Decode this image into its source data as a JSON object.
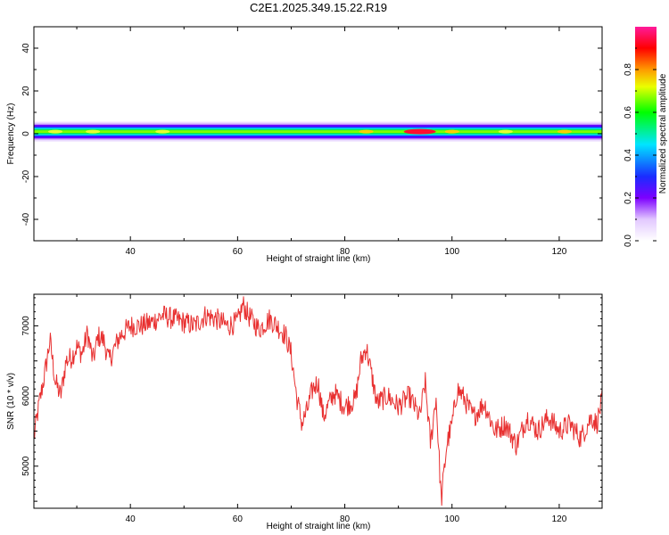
{
  "title": "C2E1.2025.349.15.22.R19",
  "colors": {
    "snr_line": "#e83030",
    "axis": "#000000",
    "background": "#ffffff"
  },
  "chart_data": [
    {
      "type": "heatmap",
      "title": "C2E1.2025.349.15.22.R19",
      "xlabel": "Height of straight line (km)",
      "ylabel": "Frequency (Hz)",
      "xlim": [
        22,
        128
      ],
      "ylim": [
        -50,
        50
      ],
      "xticks": [
        40,
        60,
        80,
        100,
        120
      ],
      "yticks": [
        -40,
        -20,
        0,
        20,
        40
      ],
      "grid": false,
      "band": {
        "center_hz": 1,
        "half_width_hz": 4,
        "hotspots": [
          {
            "x": 26,
            "value": 0.55
          },
          {
            "x": 33,
            "value": 0.55
          },
          {
            "x": 46,
            "value": 0.5
          },
          {
            "x": 84,
            "value": 0.6
          },
          {
            "x": 94,
            "value": 0.95
          },
          {
            "x": 100,
            "value": 0.6
          },
          {
            "x": 110,
            "value": 0.55
          },
          {
            "x": 121,
            "value": 0.6
          }
        ]
      },
      "colorbar": {
        "label": "Normalized spectral amplitude",
        "range": [
          0,
          1
        ],
        "ticks": [
          0.0,
          0.2,
          0.4,
          0.6,
          0.8
        ],
        "tick_labels": [
          "0.0",
          "0.2",
          "0.4",
          "0.6",
          "0.8"
        ]
      }
    },
    {
      "type": "line",
      "xlabel": "Height of straight line (km)",
      "ylabel": "SNR (10 * v/v)",
      "xlim": [
        22,
        128
      ],
      "ylim": [
        4400,
        7450
      ],
      "xticks": [
        40,
        60,
        80,
        100,
        120
      ],
      "yticks": [
        5000,
        6000,
        7000
      ],
      "grid": false,
      "series": [
        {
          "x": [
            22,
            23,
            24,
            25,
            26,
            27,
            28,
            29,
            30,
            31,
            32,
            33,
            34,
            35,
            36,
            38,
            40,
            42,
            44,
            46,
            48,
            50,
            52,
            54,
            56,
            58,
            60,
            61,
            62,
            64,
            66,
            68,
            69,
            70,
            71,
            72,
            73,
            74,
            75,
            76,
            78,
            80,
            82,
            83,
            84,
            85,
            86,
            88,
            90,
            92,
            94,
            95,
            96,
            97,
            98,
            99,
            100,
            101,
            102,
            104,
            106,
            108,
            110,
            112,
            114,
            116,
            118,
            120,
            122,
            124,
            126,
            127,
            128
          ],
          "values": [
            5400,
            5900,
            6300,
            6800,
            6200,
            6000,
            6500,
            6550,
            6700,
            6600,
            6900,
            6500,
            6850,
            6800,
            6500,
            6850,
            7000,
            7000,
            7050,
            7150,
            7100,
            7050,
            7000,
            7150,
            7100,
            7000,
            7050,
            7300,
            7150,
            6950,
            7100,
            6950,
            6850,
            6600,
            6000,
            5600,
            5800,
            6100,
            6200,
            5700,
            6050,
            5850,
            5950,
            6500,
            6700,
            6300,
            5900,
            6000,
            5850,
            6000,
            5700,
            6200,
            5300,
            6000,
            4500,
            5300,
            5600,
            6100,
            6000,
            5700,
            5900,
            5500,
            5600,
            5300,
            5700,
            5500,
            5700,
            5500,
            5600,
            5400,
            5700,
            5600,
            5950
          ]
        }
      ]
    }
  ]
}
